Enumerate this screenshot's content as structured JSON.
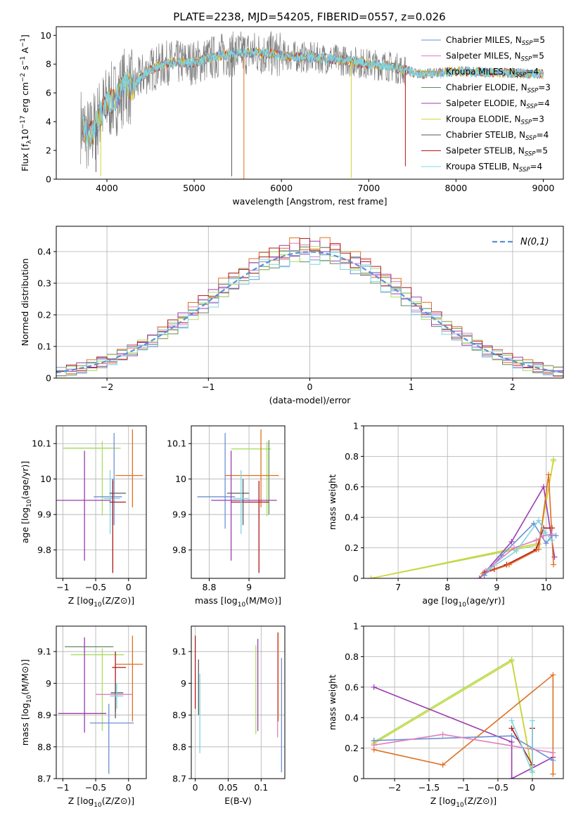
{
  "figure": {
    "title": "PLATE=2238, MJD=54205, FIBERID=0557, z=0.026"
  },
  "colors": {
    "Chabrier MILES": "#6d8fd6",
    "Salpeter MILES": "#de7fbd",
    "Kroupa MILES": "#bf9a20",
    "Chabrier ELODIE": "#5f8a5f",
    "Salpeter ELODIE": "#9b3db0",
    "Kroupa ELODIE": "#d4d43a",
    "Chabrier STELIB": "#5a5a5a",
    "Salpeter STELIB": "#b01818",
    "Kroupa STELIB": "#7fd4e0",
    "orange": "#e07020",
    "lightgreen": "#a8e060",
    "gray_spectrum": "#808080",
    "gauss": "#5b8fd9"
  },
  "chart_data": [
    {
      "type": "line",
      "title": "PLATE=2238, MJD=54205, FIBERID=0557, z=0.026",
      "xlabel": "wavelength [Angstrom, rest frame]",
      "ylabel": "Flux [f_λ10^-17 erg cm^-2 s^-1 A^-1]",
      "xlim": [
        3420,
        9230
      ],
      "ylim": [
        0,
        10.6
      ],
      "xticks": [
        4000,
        5000,
        6000,
        7000,
        8000,
        9000
      ],
      "yticks": [
        0,
        2,
        4,
        6,
        8,
        10
      ],
      "legend": [
        {
          "name": "Chabrier MILES",
          "sub": "SSP",
          "n": "=5"
        },
        {
          "name": "Salpeter MILES",
          "sub": "SSP",
          "n": "=5"
        },
        {
          "name": "Kroupa MILES",
          "sub": "SSP",
          "n": "=4"
        },
        {
          "name": "Chabrier ELODIE",
          "sub": "SSP",
          "n": "=3"
        },
        {
          "name": "Salpeter ELODIE",
          "sub": "SSP",
          "n": "=4"
        },
        {
          "name": "Kroupa ELODIE",
          "sub": "SSP",
          "n": "=3"
        },
        {
          "name": "Chabrier STELIB",
          "sub": "SSP",
          "n": "=4"
        },
        {
          "name": "Salpeter STELIB",
          "sub": "SSP",
          "n": "=5"
        },
        {
          "name": "Kroupa STELIB",
          "sub": "SSP",
          "n": "=4"
        }
      ],
      "continuum": {
        "x": [
          3700,
          3800,
          3900,
          4000,
          4100,
          4200,
          4300,
          4400,
          4500,
          4700,
          5000,
          5300,
          5600,
          5900,
          6200,
          6500,
          6800,
          7000,
          7200,
          7400,
          7600,
          8000,
          8500,
          9000
        ],
        "y": [
          3.8,
          2.9,
          4.2,
          5.3,
          5.6,
          6.5,
          6.3,
          7.2,
          7.6,
          8.1,
          8.1,
          8.6,
          8.8,
          8.7,
          8.5,
          8.4,
          8.2,
          8.0,
          7.9,
          7.6,
          7.3,
          7.5,
          7.4,
          7.3
        ]
      },
      "dips": [
        {
          "x": 3875,
          "y": 0.5,
          "series": "Chabrier STELIB"
        },
        {
          "x": 3930,
          "y": 0.2,
          "series": "Kroupa ELODIE"
        },
        {
          "x": 5430,
          "y": 0.2,
          "series": "Chabrier STELIB"
        },
        {
          "x": 5570,
          "y": 0.0,
          "series": "orange"
        },
        {
          "x": 6800,
          "y": 0.1,
          "series": "Kroupa ELODIE"
        },
        {
          "x": 7420,
          "y": 0.9,
          "series": "Salpeter STELIB"
        }
      ]
    },
    {
      "type": "histogram",
      "xlabel": "(data-model)/error",
      "ylabel": "Normed distribution",
      "xlim": [
        -2.5,
        2.5
      ],
      "ylim": [
        0,
        0.48
      ],
      "xticks": [
        -2,
        -1,
        0,
        1,
        2
      ],
      "yticks": [
        0.0,
        0.1,
        0.2,
        0.3,
        0.4
      ],
      "legend": [
        {
          "name": "N(0,1)"
        }
      ],
      "bin_width": 0.1,
      "series": [
        {
          "name": "Chabrier MILES",
          "scale": 0.98,
          "phase": 0.3
        },
        {
          "name": "Salpeter MILES",
          "scale": 1.03,
          "phase": 1.1
        },
        {
          "name": "orange",
          "scale": 1.06,
          "phase": 2.2
        },
        {
          "name": "Chabrier ELODIE",
          "scale": 0.99,
          "phase": 3.0
        },
        {
          "name": "Salpeter ELODIE",
          "scale": 1.02,
          "phase": 4.1
        },
        {
          "name": "lightgreen",
          "scale": 1.0,
          "phase": 5.2
        },
        {
          "name": "Salpeter STELIB",
          "scale": 1.04,
          "phase": 6.3
        },
        {
          "name": "Kroupa STELIB",
          "scale": 0.97,
          "phase": 7.4
        }
      ]
    },
    {
      "type": "errorbar",
      "xlabel": "Z [log10(Z/Z⊙)]",
      "ylabel": "age [log10(age/yr)]",
      "xlim": [
        -1.1,
        0.27
      ],
      "ylim": [
        9.72,
        10.15
      ],
      "xticks": [
        -1.0,
        -0.5,
        0.0
      ],
      "yticks": [
        9.8,
        9.9,
        10.0,
        10.1
      ],
      "points": [
        {
          "series": "Chabrier ELODIE",
          "x": -0.47,
          "xerr": [
            0.5,
            0.24
          ],
          "y": 10.087,
          "yerr": [
            0.0,
            0.0
          ]
        },
        {
          "series": "lightgreen",
          "x": -0.4,
          "xerr": [
            0.6,
            0.28
          ],
          "y": 10.087,
          "yerr": [
            0.19,
            0.02
          ]
        },
        {
          "series": "orange",
          "x": 0.06,
          "xerr": [
            0.26,
            0.16
          ],
          "y": 10.01,
          "yerr": [
            0.09,
            0.13
          ]
        },
        {
          "series": "Chabrier MILES",
          "x": -0.22,
          "xerr": [
            0.31,
            0.12
          ],
          "y": 9.95,
          "yerr": [
            0.08,
            0.18
          ]
        },
        {
          "series": "Kroupa STELIB",
          "x": -0.28,
          "xerr": [
            0.1,
            0.15
          ],
          "y": 9.945,
          "yerr": [
            0.1,
            0.08
          ]
        },
        {
          "series": "Salpeter ELODIE",
          "x": -0.67,
          "xerr": [
            0.45,
            0.4
          ],
          "y": 9.94,
          "yerr": [
            0.17,
            0.14
          ]
        },
        {
          "series": "Chabrier STELIB",
          "x": -0.24,
          "xerr": [
            0.05,
            0.2
          ],
          "y": 9.96,
          "yerr": [
            0.09,
            0.04
          ]
        },
        {
          "series": "Salpeter STELIB",
          "x": -0.24,
          "xerr": [
            0.05,
            0.2
          ],
          "y": 9.935,
          "yerr": [
            0.2,
            0.06
          ]
        }
      ]
    },
    {
      "type": "errorbar",
      "xlabel": "mass [log10(M/M⊙)]",
      "ylabel": "",
      "xlim": [
        8.71,
        9.18
      ],
      "ylim": [
        9.72,
        10.15
      ],
      "xticks": [
        8.8,
        9.0
      ],
      "yticks": [
        9.8,
        9.9,
        10.0,
        10.1
      ],
      "points": [
        {
          "series": "Chabrier MILES",
          "x": 8.88,
          "xerr": [
            0.14,
            0.05
          ],
          "y": 9.95,
          "yerr": [
            0.09,
            0.18
          ]
        },
        {
          "series": "lightgreen",
          "x": 9.09,
          "xerr": [
            0.18,
            0.02
          ],
          "y": 10.085,
          "yerr": [
            0.19,
            0.02
          ]
        },
        {
          "series": "Chabrier ELODIE",
          "x": 9.1,
          "xerr": [
            0.0,
            0.0
          ],
          "y": 10.09,
          "yerr": [
            0.19,
            0.02
          ]
        },
        {
          "series": "orange",
          "x": 9.06,
          "xerr": [
            0.18,
            0.09
          ],
          "y": 10.01,
          "yerr": [
            0.09,
            0.13
          ]
        },
        {
          "series": "Salpeter ELODIE",
          "x": 8.91,
          "xerr": [
            0.1,
            0.23
          ],
          "y": 9.94,
          "yerr": [
            0.17,
            0.14
          ]
        },
        {
          "series": "Salpeter STELIB",
          "x": 9.05,
          "xerr": [
            0.14,
            0.05
          ],
          "y": 9.935,
          "yerr": [
            0.2,
            0.06
          ]
        },
        {
          "series": "Chabrier STELIB",
          "x": 8.97,
          "xerr": [
            0.08,
            0.03
          ],
          "y": 9.96,
          "yerr": [
            0.09,
            0.04
          ]
        },
        {
          "series": "Kroupa STELIB",
          "x": 8.96,
          "xerr": [
            0.04,
            0.04
          ],
          "y": 9.945,
          "yerr": [
            0.1,
            0.08
          ]
        }
      ]
    },
    {
      "type": "line",
      "xlabel": "age [log10(age/yr)]",
      "ylabel": "mass weight",
      "xlim": [
        6.3,
        10.35
      ],
      "ylim": [
        0,
        1.0
      ],
      "xticks": [
        7,
        8,
        9,
        10
      ],
      "yticks": [
        0.0,
        0.2,
        0.4,
        0.6,
        0.8,
        1.0
      ],
      "series": [
        {
          "name": "lightgreen",
          "x": [
            6.45,
            9.85,
            10.15
          ],
          "y": [
            0.0,
            0.22,
            0.78
          ]
        },
        {
          "name": "Kroupa ELODIE",
          "x": [
            6.45,
            9.85,
            10.15
          ],
          "y": [
            0.0,
            0.23,
            0.77
          ]
        },
        {
          "name": "Salpeter ELODIE",
          "x": [
            8.65,
            9.3,
            9.95,
            10.17
          ],
          "y": [
            0.0,
            0.24,
            0.6,
            0.14
          ]
        },
        {
          "name": "Salpeter STELIB",
          "x": [
            8.75,
            8.95,
            9.2,
            9.8,
            9.95,
            10.12
          ],
          "y": [
            0.04,
            0.06,
            0.09,
            0.19,
            0.33,
            0.33
          ]
        },
        {
          "name": "orange",
          "x": [
            8.72,
            9.25,
            9.85,
            10.05,
            10.15
          ],
          "y": [
            0.03,
            0.09,
            0.19,
            0.68,
            0.09
          ]
        },
        {
          "name": "Chabrier MILES",
          "x": [
            8.75,
            9.1,
            9.75,
            10.0,
            10.12,
            10.2
          ],
          "y": [
            0.02,
            0.15,
            0.36,
            0.23,
            0.28,
            0.28
          ]
        },
        {
          "name": "Salpeter MILES",
          "x": [
            8.78,
            9.35,
            9.8,
            9.95,
            10.12
          ],
          "y": [
            0.05,
            0.2,
            0.25,
            0.28,
            0.29
          ]
        },
        {
          "name": "Kroupa STELIB",
          "x": [
            8.85,
            9.4,
            9.85,
            9.98,
            10.12
          ],
          "y": [
            0.06,
            0.18,
            0.38,
            0.3,
            0.25
          ]
        }
      ]
    },
    {
      "type": "errorbar",
      "xlabel": "Z [log10(Z/Z⊙)]",
      "ylabel": "mass [log10(M/M⊙)]",
      "xlim": [
        -1.1,
        0.27
      ],
      "ylim": [
        8.7,
        9.18
      ],
      "xticks": [
        -1.0,
        -0.5,
        0.0
      ],
      "yticks": [
        8.7,
        8.8,
        8.9,
        9.0,
        9.1
      ],
      "points": [
        {
          "series": "Chabrier ELODIE",
          "x": -0.47,
          "xerr": [
            0.5,
            0.24
          ],
          "y": 9.115,
          "yerr": [
            0.0,
            0.0
          ]
        },
        {
          "series": "lightgreen",
          "x": -0.4,
          "xerr": [
            0.48,
            0.33
          ],
          "y": 9.09,
          "yerr": [
            0.24,
            0.02
          ]
        },
        {
          "series": "orange",
          "x": 0.06,
          "xerr": [
            0.26,
            0.16
          ],
          "y": 9.06,
          "yerr": [
            0.18,
            0.09
          ]
        },
        {
          "series": "Salpeter STELIB",
          "x": -0.2,
          "xerr": [
            0.05,
            0.16
          ],
          "y": 9.05,
          "yerr": [
            0.14,
            0.05
          ]
        },
        {
          "series": "Chabrier STELIB",
          "x": -0.2,
          "xerr": [
            0.07,
            0.12
          ],
          "y": 8.97,
          "yerr": [
            0.08,
            0.03
          ]
        },
        {
          "series": "Salpeter MILES",
          "x": -0.14,
          "xerr": [
            0.36,
            0.2
          ],
          "y": 8.965,
          "yerr": [
            0.0,
            0.0
          ]
        },
        {
          "series": "Kroupa STELIB",
          "x": -0.18,
          "xerr": [
            0.1,
            0.1
          ],
          "y": 8.96,
          "yerr": [
            0.04,
            0.04
          ]
        },
        {
          "series": "Salpeter ELODIE",
          "x": -0.67,
          "xerr": [
            0.4,
            0.33
          ],
          "y": 8.905,
          "yerr": [
            0.06,
            0.24
          ]
        },
        {
          "series": "Chabrier MILES",
          "x": -0.3,
          "xerr": [
            0.29,
            0.38
          ],
          "y": 8.875,
          "yerr": [
            0.16,
            0.06
          ]
        }
      ]
    },
    {
      "type": "errorbar",
      "xlabel": "E(B-V)",
      "ylabel": "",
      "xlim": [
        -0.006,
        0.136
      ],
      "ylim": [
        8.7,
        9.18
      ],
      "xticks": [
        0.0,
        0.05,
        0.1
      ],
      "yticks": [
        8.7,
        8.8,
        8.9,
        9.0,
        9.1
      ],
      "points": [
        {
          "series": "Salpeter STELIB",
          "x": 0.0,
          "xerr": [
            0,
            0
          ],
          "y": 9.05,
          "yerr": [
            0.13,
            0.1
          ]
        },
        {
          "series": "Chabrier STELIB",
          "x": 0.005,
          "xerr": [
            0,
            0
          ],
          "y": 8.98,
          "yerr": [
            0.08,
            0.095
          ]
        },
        {
          "series": "Kroupa STELIB",
          "x": 0.007,
          "xerr": [
            0,
            0
          ],
          "y": 8.95,
          "yerr": [
            0.17,
            0.08
          ]
        },
        {
          "series": "lightgreen",
          "x": 0.092,
          "xerr": [
            0,
            0
          ],
          "y": 8.99,
          "yerr": [
            0.15,
            0.13
          ]
        },
        {
          "series": "Salpeter ELODIE",
          "x": 0.095,
          "xerr": [
            0,
            0
          ],
          "y": 8.99,
          "yerr": [
            0.14,
            0.15
          ]
        },
        {
          "series": "Salpeter MILES",
          "x": 0.125,
          "xerr": [
            0,
            0
          ],
          "y": 8.99,
          "yerr": [
            0.16,
            0.17
          ]
        },
        {
          "series": "orange",
          "x": 0.126,
          "xerr": [
            0,
            0
          ],
          "y": 9.03,
          "yerr": [
            0.15,
            0.13
          ]
        },
        {
          "series": "Chabrier MILES",
          "x": 0.131,
          "xerr": [
            0,
            0
          ],
          "y": 8.9,
          "yerr": [
            0.18,
            0.18
          ]
        }
      ]
    },
    {
      "type": "line",
      "xlabel": "Z [log10(Z/Z⊙)]",
      "ylabel": "mass weight",
      "xlim": [
        -2.45,
        0.45
      ],
      "ylim": [
        0,
        1.0
      ],
      "xticks": [
        -2.0,
        -1.5,
        -1.0,
        -0.5,
        0.0
      ],
      "yticks": [
        0.0,
        0.2,
        0.4,
        0.6,
        0.8,
        1.0
      ],
      "series": [
        {
          "name": "lightgreen",
          "x": [
            -2.3,
            -0.3,
            0.0
          ],
          "y": [
            0.24,
            0.78,
            0.05
          ]
        },
        {
          "name": "Kroupa ELODIE",
          "x": [
            -2.3,
            -0.3,
            0.0
          ],
          "y": [
            0.23,
            0.77,
            0.04
          ]
        },
        {
          "name": "Salpeter ELODIE",
          "x": [
            -2.3,
            -0.3,
            -0.3,
            0.3
          ],
          "y": [
            0.6,
            0.24,
            0.0,
            0.14
          ]
        },
        {
          "name": "orange",
          "x": [
            -2.3,
            -1.3,
            0.3,
            0.3
          ],
          "y": [
            0.19,
            0.09,
            0.68,
            0.03
          ]
        },
        {
          "name": "Chabrier MILES",
          "x": [
            -2.3,
            -0.3,
            0.3
          ],
          "y": [
            0.25,
            0.28,
            0.12
          ]
        },
        {
          "name": "Salpeter MILES",
          "x": [
            -2.3,
            -1.3,
            0.3
          ],
          "y": [
            0.22,
            0.29,
            0.17
          ]
        },
        {
          "name": "Salpeter STELIB",
          "x": [
            -0.3,
            0.0,
            0.0
          ],
          "y": [
            0.33,
            0.09,
            0.33
          ]
        },
        {
          "name": "Kroupa STELIB",
          "x": [
            -0.3,
            0.0,
            0.0
          ],
          "y": [
            0.38,
            0.04,
            0.38
          ]
        }
      ]
    }
  ]
}
